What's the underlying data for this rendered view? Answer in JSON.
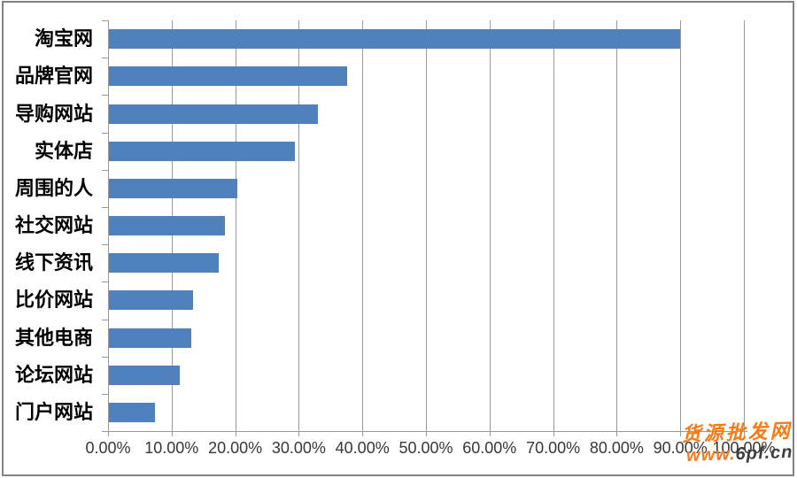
{
  "chart_data": {
    "type": "bar",
    "orientation": "horizontal",
    "title": "",
    "categories": [
      "淘宝网",
      "品牌官网",
      "导购网站",
      "实体店",
      "周围的人",
      "社交网站",
      "线下资讯",
      "比价网站",
      "其他电商",
      "论坛网站",
      "门户网站"
    ],
    "values": [
      89.8,
      37.5,
      32.9,
      29.2,
      20.2,
      18.2,
      17.3,
      13.2,
      12.9,
      11.1,
      7.3
    ],
    "unit": "%",
    "x_axis": {
      "min": 0,
      "max": 100,
      "step": 10,
      "tick_labels": [
        "0.00%",
        "10.00%",
        "20.00%",
        "30.00%",
        "40.00%",
        "50.00%",
        "60.00%",
        "70.00%",
        "80.00%",
        "90.00%",
        "100.00%"
      ]
    },
    "grid": true,
    "legend": false,
    "bar_color": "#4f81bd",
    "grid_color": "#999999",
    "label_color": "#000000",
    "tick_label_color": "#373737"
  },
  "watermark": {
    "site_name": "货源批发网",
    "url_prefix": "www.",
    "url_suffix": "6pf.cn",
    "orange_color": "#fb7a16",
    "dark_color": "#3e3e3e"
  },
  "frame_color": "#838383"
}
